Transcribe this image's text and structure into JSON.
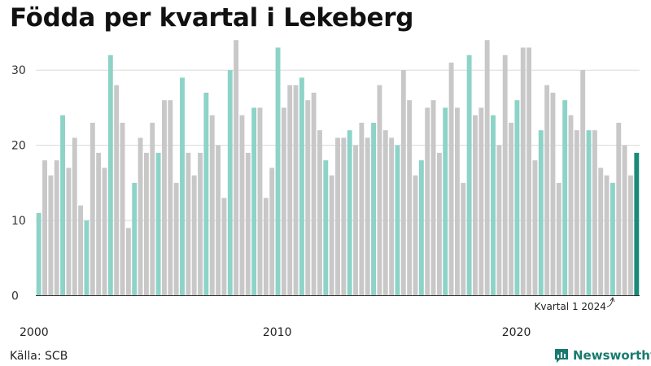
{
  "header": {
    "title": "Födda per kvartal i Lekeberg"
  },
  "footer": {
    "source": "Källa: SCB",
    "brand": "Newsworthy"
  },
  "colors": {
    "highlight": "#8dd3c7",
    "regular": "#c8c8c8",
    "latest": "#1a8a7a",
    "brand": "#177b6e"
  },
  "icons": {
    "brand": "chart-speech-bubble-icon"
  },
  "chart_data": {
    "type": "bar",
    "title": "Födda per kvartal i Lekeberg",
    "xlabel": "",
    "ylabel": "",
    "ylim": [
      0,
      35
    ],
    "yticks": [
      0,
      10,
      20,
      30
    ],
    "xticks": [
      {
        "label": "2000",
        "index": 0
      },
      {
        "label": "2010",
        "index": 40
      },
      {
        "label": "2020",
        "index": 80
      }
    ],
    "grid": true,
    "legend": "none",
    "start": "2000 Kvartal 1",
    "annotation": {
      "text": "Kvartal 1 2024",
      "index": 96
    },
    "highlight_rule": "Kvartal 1 of each year highlighted; latest quarter darker",
    "values": [
      11,
      18,
      16,
      18,
      24,
      17,
      21,
      12,
      10,
      23,
      19,
      17,
      32,
      28,
      23,
      9,
      15,
      21,
      19,
      23,
      19,
      26,
      26,
      15,
      29,
      19,
      16,
      19,
      27,
      24,
      20,
      13,
      30,
      34,
      24,
      19,
      25,
      25,
      13,
      17,
      33,
      25,
      28,
      28,
      29,
      26,
      27,
      22,
      18,
      16,
      21,
      21,
      22,
      20,
      23,
      21,
      23,
      28,
      22,
      21,
      20,
      30,
      26,
      16,
      18,
      25,
      26,
      19,
      25,
      31,
      25,
      15,
      32,
      24,
      25,
      34,
      24,
      20,
      32,
      23,
      26,
      33,
      33,
      18,
      22,
      28,
      27,
      15,
      26,
      24,
      22,
      30,
      22,
      22,
      17,
      16,
      15,
      23,
      20,
      16,
      19
    ]
  }
}
